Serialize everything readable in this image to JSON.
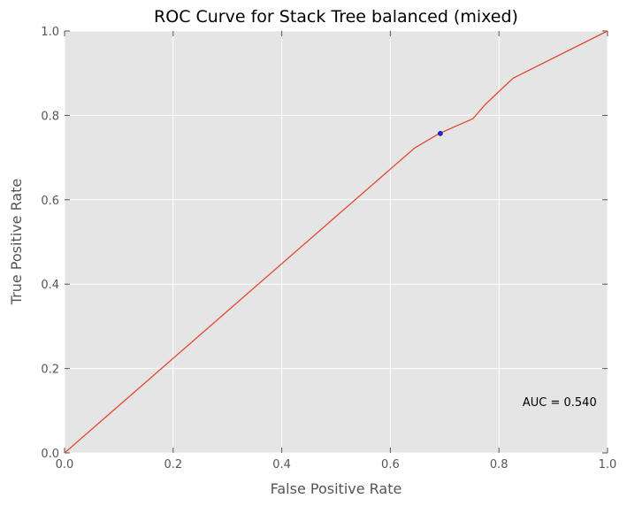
{
  "chart_data": {
    "type": "line",
    "title": "ROC Curve for Stack Tree balanced (mixed)",
    "xlabel": "False Positive Rate",
    "ylabel": "True Positive Rate",
    "xlim": [
      0.0,
      1.0
    ],
    "ylim": [
      0.0,
      1.0
    ],
    "xticks": [
      0.0,
      0.2,
      0.4,
      0.6,
      0.8,
      1.0
    ],
    "yticks": [
      0.0,
      0.2,
      0.4,
      0.6,
      0.8,
      1.0
    ],
    "xtick_labels": [
      "0.0",
      "0.2",
      "0.4",
      "0.6",
      "0.8",
      "1.0"
    ],
    "ytick_labels": [
      "0.0",
      "0.2",
      "0.4",
      "0.6",
      "0.8",
      "1.0"
    ],
    "grid": true,
    "series": [
      {
        "color": "#e24a33",
        "x": [
          0.0,
          0.645,
          0.69,
          0.752,
          0.775,
          0.826,
          1.0
        ],
        "y": [
          0.0,
          0.723,
          0.757,
          0.792,
          0.826,
          0.888,
          1.0
        ]
      }
    ],
    "marker_point": {
      "x": 0.692,
      "y": 0.757,
      "color": "#2a1aff"
    },
    "annotation": {
      "text": "AUC = 0.540",
      "x": 0.98,
      "y": 0.12
    },
    "colors": {
      "plot_bg": "#e5e5e5",
      "grid": "#ffffff",
      "tick": "#555555"
    }
  }
}
